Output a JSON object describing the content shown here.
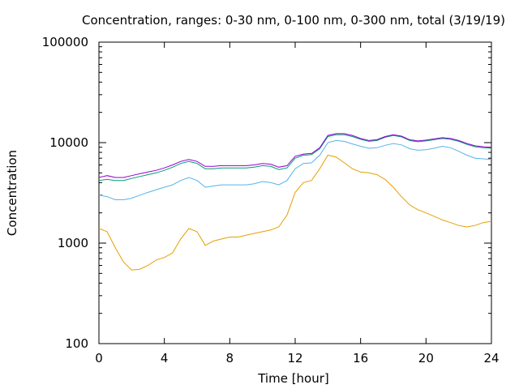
{
  "chart_data": {
    "type": "line",
    "title": "Concentration, ranges: 0-30 nm, 0-100 nm, 0-300 nm, total (3/19/19)",
    "xlabel": "Time [hour]",
    "ylabel": "Concentration",
    "xlim": [
      0,
      24
    ],
    "ylim": [
      100,
      100000
    ],
    "yscale": "log",
    "grid": false,
    "x_ticks": [
      "0",
      "4",
      "8",
      "12",
      "16",
      "20",
      "24"
    ],
    "y_ticks": [
      "100",
      "1000",
      "10000",
      "100000"
    ],
    "x": [
      0,
      0.5,
      1,
      1.5,
      2,
      2.5,
      3,
      3.5,
      4,
      4.5,
      5,
      5.5,
      6,
      6.5,
      7,
      7.5,
      8,
      8.5,
      9,
      9.5,
      10,
      10.5,
      11,
      11.5,
      12,
      12.5,
      13,
      13.5,
      14,
      14.5,
      15,
      15.5,
      16,
      16.5,
      17,
      17.5,
      18,
      18.5,
      19,
      19.5,
      20,
      20.5,
      21,
      21.5,
      22,
      22.5,
      23,
      23.5,
      24
    ],
    "series": [
      {
        "color": "#e69f00",
        "values": [
          1400,
          1300,
          900,
          650,
          540,
          550,
          600,
          680,
          720,
          800,
          1100,
          1400,
          1300,
          950,
          1050,
          1100,
          1150,
          1150,
          1200,
          1250,
          1300,
          1350,
          1450,
          1900,
          3200,
          4000,
          4200,
          5500,
          7500,
          7200,
          6300,
          5500,
          5100,
          5000,
          4800,
          4300,
          3600,
          2900,
          2400,
          2150,
          2000,
          1850,
          1700,
          1600,
          1500,
          1450,
          1500,
          1600,
          1650
        ]
      },
      {
        "color": "#56b4e9",
        "values": [
          3000,
          2900,
          2700,
          2700,
          2800,
          3000,
          3200,
          3400,
          3600,
          3800,
          4200,
          4500,
          4200,
          3600,
          3700,
          3800,
          3800,
          3800,
          3800,
          3900,
          4100,
          4000,
          3800,
          4200,
          5500,
          6200,
          6300,
          7500,
          10000,
          10500,
          10300,
          9700,
          9200,
          8800,
          8900,
          9400,
          9800,
          9500,
          8700,
          8400,
          8500,
          8800,
          9200,
          8900,
          8200,
          7500,
          7000,
          6900,
          6800
        ]
      },
      {
        "color": "#009e73",
        "values": [
          4200,
          4300,
          4200,
          4200,
          4400,
          4600,
          4800,
          5000,
          5300,
          5700,
          6200,
          6500,
          6200,
          5500,
          5500,
          5600,
          5600,
          5600,
          5600,
          5700,
          5900,
          5800,
          5400,
          5600,
          7000,
          7500,
          7600,
          8700,
          11500,
          12000,
          12000,
          11500,
          10800,
          10300,
          10500,
          11300,
          11800,
          11400,
          10500,
          10200,
          10400,
          10700,
          11000,
          10800,
          10300,
          9600,
          9100,
          8900,
          8800
        ]
      },
      {
        "color": "#9400d3",
        "values": [
          4500,
          4700,
          4500,
          4500,
          4700,
          4900,
          5100,
          5300,
          5600,
          6000,
          6500,
          6800,
          6500,
          5800,
          5800,
          5900,
          5900,
          5900,
          5900,
          6000,
          6200,
          6100,
          5700,
          5900,
          7300,
          7700,
          7800,
          8900,
          11800,
          12300,
          12300,
          11800,
          11000,
          10500,
          10700,
          11500,
          12000,
          11600,
          10700,
          10400,
          10600,
          10900,
          11200,
          11000,
          10500,
          9800,
          9300,
          9100,
          9000
        ]
      }
    ]
  }
}
